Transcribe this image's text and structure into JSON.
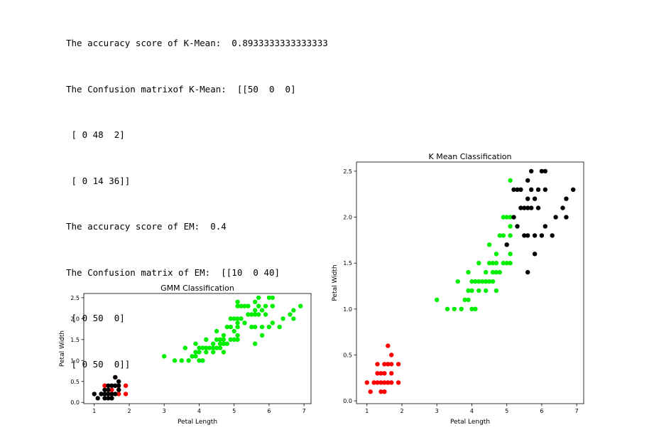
{
  "output_lines": [
    "The accuracy score of K-Mean:  0.8933333333333333",
    "The Confusion matrixof K-Mean:  [[50  0  0]",
    " [ 0 48  2]",
    " [ 0 14 36]]",
    "The accuracy score of EM:  0.4",
    "The Confusion matrix of EM:  [[10  0 40]",
    " [ 0 50  0]",
    " [ 0 50  0]]"
  ],
  "colors": {
    "red": "#ff0000",
    "green": "#00ee00",
    "black": "#000000"
  },
  "chart_data": [
    {
      "type": "scatter",
      "title": "GMM Classification",
      "xlabel": "Petal Length",
      "ylabel": "Petal Width",
      "xlim": [
        0.7,
        7.2
      ],
      "ylim": [
        -0.03,
        2.6
      ],
      "xticks": [
        "1",
        "2",
        "3",
        "4",
        "5",
        "6",
        "7"
      ],
      "yticks": [
        "0.0",
        "0.5",
        "1.0",
        "1.5",
        "2.0",
        "2.5"
      ],
      "grid": false,
      "series": [
        {
          "color": "red",
          "points": [
            [
              1.4,
              0.2
            ],
            [
              1.5,
              0.2
            ],
            [
              1.6,
              0.2
            ],
            [
              1.7,
              0.3
            ],
            [
              1.9,
              0.2
            ],
            [
              1.3,
              0.4
            ],
            [
              1.6,
              0.4
            ],
            [
              1.9,
              0.4
            ],
            [
              1.6,
              0.6
            ],
            [
              1.5,
              0.1
            ],
            [
              1.7,
              0.2
            ],
            [
              1.5,
              0.3
            ]
          ]
        },
        {
          "color": "black",
          "points": [
            [
              1.0,
              0.2
            ],
            [
              1.1,
              0.1
            ],
            [
              1.2,
              0.2
            ],
            [
              1.3,
              0.2
            ],
            [
              1.3,
              0.3
            ],
            [
              1.4,
              0.1
            ],
            [
              1.4,
              0.2
            ],
            [
              1.4,
              0.3
            ],
            [
              1.5,
              0.1
            ],
            [
              1.5,
              0.2
            ],
            [
              1.5,
              0.4
            ],
            [
              1.6,
              0.2
            ],
            [
              1.6,
              0.4
            ],
            [
              1.7,
              0.3
            ],
            [
              1.7,
              0.4
            ],
            [
              1.7,
              0.5
            ],
            [
              1.6,
              0.6
            ],
            [
              1.3,
              0.1
            ],
            [
              1.4,
              0.4
            ],
            [
              1.2,
              0.2
            ]
          ]
        },
        {
          "color": "green",
          "points": [
            [
              3.0,
              1.1
            ],
            [
              3.3,
              1.0
            ],
            [
              3.5,
              1.0
            ],
            [
              3.6,
              1.3
            ],
            [
              3.7,
              1.0
            ],
            [
              3.8,
              1.1
            ],
            [
              3.9,
              1.1
            ],
            [
              3.9,
              1.2
            ],
            [
              3.9,
              1.4
            ],
            [
              4.0,
              1.0
            ],
            [
              4.0,
              1.2
            ],
            [
              4.0,
              1.3
            ],
            [
              4.1,
              1.0
            ],
            [
              4.1,
              1.3
            ],
            [
              4.2,
              1.2
            ],
            [
              4.2,
              1.3
            ],
            [
              4.2,
              1.5
            ],
            [
              4.3,
              1.3
            ],
            [
              4.4,
              1.2
            ],
            [
              4.4,
              1.3
            ],
            [
              4.4,
              1.4
            ],
            [
              4.5,
              1.3
            ],
            [
              4.5,
              1.5
            ],
            [
              4.5,
              1.7
            ],
            [
              4.6,
              1.3
            ],
            [
              4.6,
              1.4
            ],
            [
              4.6,
              1.5
            ],
            [
              4.7,
              1.2
            ],
            [
              4.7,
              1.4
            ],
            [
              4.7,
              1.5
            ],
            [
              4.7,
              1.6
            ],
            [
              4.8,
              1.4
            ],
            [
              4.8,
              1.8
            ],
            [
              4.9,
              1.5
            ],
            [
              4.9,
              1.8
            ],
            [
              4.9,
              2.0
            ],
            [
              5.0,
              1.5
            ],
            [
              5.0,
              1.7
            ],
            [
              5.0,
              2.0
            ],
            [
              5.1,
              1.5
            ],
            [
              5.1,
              1.6
            ],
            [
              5.1,
              1.8
            ],
            [
              5.1,
              1.9
            ],
            [
              5.1,
              2.0
            ],
            [
              5.1,
              2.3
            ],
            [
              5.1,
              2.4
            ],
            [
              5.2,
              2.0
            ],
            [
              5.2,
              2.3
            ],
            [
              5.3,
              1.9
            ],
            [
              5.3,
              2.3
            ],
            [
              5.4,
              2.1
            ],
            [
              5.4,
              2.3
            ],
            [
              5.5,
              1.8
            ],
            [
              5.5,
              2.1
            ],
            [
              5.6,
              1.4
            ],
            [
              5.6,
              1.8
            ],
            [
              5.6,
              2.1
            ],
            [
              5.6,
              2.2
            ],
            [
              5.6,
              2.4
            ],
            [
              5.7,
              2.1
            ],
            [
              5.7,
              2.3
            ],
            [
              5.7,
              2.5
            ],
            [
              5.8,
              1.6
            ],
            [
              5.8,
              1.8
            ],
            [
              5.8,
              2.2
            ],
            [
              5.9,
              2.1
            ],
            [
              5.9,
              2.3
            ],
            [
              6.0,
              1.8
            ],
            [
              6.0,
              2.5
            ],
            [
              6.1,
              1.9
            ],
            [
              6.1,
              2.3
            ],
            [
              6.1,
              2.5
            ],
            [
              6.3,
              1.8
            ],
            [
              6.4,
              2.0
            ],
            [
              6.6,
              2.1
            ],
            [
              6.7,
              2.0
            ],
            [
              6.7,
              2.2
            ],
            [
              6.9,
              2.3
            ]
          ]
        }
      ]
    },
    {
      "type": "scatter",
      "title": "K Mean Classification",
      "xlabel": "Petal Length",
      "ylabel": "Petal Width",
      "xlim": [
        0.7,
        7.2
      ],
      "ylim": [
        -0.03,
        2.6
      ],
      "xticks": [
        "1",
        "2",
        "3",
        "4",
        "5",
        "6",
        "7"
      ],
      "yticks": [
        "0.0",
        "0.5",
        "1.0",
        "1.5",
        "2.0",
        "2.5"
      ],
      "grid": false,
      "series": [
        {
          "color": "red",
          "points": [
            [
              1.0,
              0.2
            ],
            [
              1.1,
              0.1
            ],
            [
              1.2,
              0.2
            ],
            [
              1.3,
              0.2
            ],
            [
              1.3,
              0.3
            ],
            [
              1.3,
              0.4
            ],
            [
              1.4,
              0.1
            ],
            [
              1.4,
              0.2
            ],
            [
              1.4,
              0.3
            ],
            [
              1.5,
              0.1
            ],
            [
              1.5,
              0.2
            ],
            [
              1.5,
              0.3
            ],
            [
              1.5,
              0.4
            ],
            [
              1.6,
              0.2
            ],
            [
              1.6,
              0.4
            ],
            [
              1.6,
              0.6
            ],
            [
              1.7,
              0.2
            ],
            [
              1.7,
              0.3
            ],
            [
              1.7,
              0.4
            ],
            [
              1.7,
              0.5
            ],
            [
              1.9,
              0.2
            ],
            [
              1.9,
              0.4
            ]
          ]
        },
        {
          "color": "green",
          "points": [
            [
              3.0,
              1.1
            ],
            [
              3.3,
              1.0
            ],
            [
              3.5,
              1.0
            ],
            [
              3.6,
              1.3
            ],
            [
              3.7,
              1.0
            ],
            [
              3.8,
              1.1
            ],
            [
              3.9,
              1.1
            ],
            [
              3.9,
              1.2
            ],
            [
              3.9,
              1.4
            ],
            [
              4.0,
              1.0
            ],
            [
              4.0,
              1.2
            ],
            [
              4.0,
              1.3
            ],
            [
              4.1,
              1.0
            ],
            [
              4.1,
              1.3
            ],
            [
              4.2,
              1.2
            ],
            [
              4.2,
              1.3
            ],
            [
              4.2,
              1.5
            ],
            [
              4.3,
              1.3
            ],
            [
              4.4,
              1.2
            ],
            [
              4.4,
              1.3
            ],
            [
              4.4,
              1.4
            ],
            [
              4.5,
              1.3
            ],
            [
              4.5,
              1.5
            ],
            [
              4.5,
              1.7
            ],
            [
              4.6,
              1.3
            ],
            [
              4.6,
              1.4
            ],
            [
              4.6,
              1.5
            ],
            [
              4.7,
              1.2
            ],
            [
              4.7,
              1.4
            ],
            [
              4.7,
              1.5
            ],
            [
              4.7,
              1.6
            ],
            [
              4.8,
              1.4
            ],
            [
              4.8,
              1.8
            ],
            [
              4.9,
              1.5
            ],
            [
              4.9,
              1.8
            ],
            [
              4.9,
              2.0
            ],
            [
              5.0,
              1.5
            ],
            [
              5.0,
              1.7
            ],
            [
              5.0,
              2.0
            ],
            [
              5.1,
              1.5
            ],
            [
              5.1,
              1.6
            ],
            [
              5.1,
              1.8
            ],
            [
              5.1,
              1.9
            ],
            [
              5.1,
              2.0
            ],
            [
              5.1,
              2.4
            ]
          ]
        },
        {
          "color": "black",
          "points": [
            [
              5.0,
              1.7
            ],
            [
              5.2,
              2.0
            ],
            [
              5.2,
              2.3
            ],
            [
              5.3,
              1.9
            ],
            [
              5.3,
              2.3
            ],
            [
              5.4,
              2.1
            ],
            [
              5.4,
              2.3
            ],
            [
              5.5,
              1.8
            ],
            [
              5.5,
              2.1
            ],
            [
              5.6,
              1.4
            ],
            [
              5.6,
              1.8
            ],
            [
              5.6,
              2.1
            ],
            [
              5.6,
              2.2
            ],
            [
              5.6,
              2.4
            ],
            [
              5.7,
              2.1
            ],
            [
              5.7,
              2.3
            ],
            [
              5.7,
              2.5
            ],
            [
              5.8,
              1.6
            ],
            [
              5.8,
              1.8
            ],
            [
              5.8,
              2.2
            ],
            [
              5.9,
              2.1
            ],
            [
              5.9,
              2.3
            ],
            [
              6.0,
              1.8
            ],
            [
              6.0,
              2.5
            ],
            [
              6.1,
              1.9
            ],
            [
              6.1,
              2.3
            ],
            [
              6.1,
              2.5
            ],
            [
              6.3,
              1.8
            ],
            [
              6.4,
              2.0
            ],
            [
              6.6,
              2.1
            ],
            [
              6.7,
              2.0
            ],
            [
              6.7,
              2.2
            ],
            [
              6.9,
              2.3
            ]
          ]
        }
      ]
    }
  ]
}
